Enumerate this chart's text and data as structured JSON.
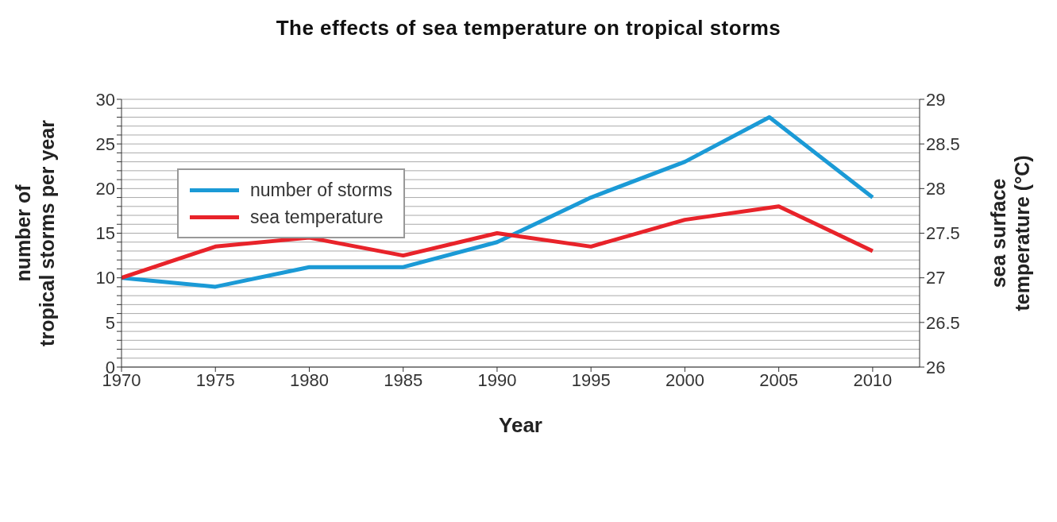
{
  "chart_data": {
    "type": "line",
    "title": "The effects of sea temperature on tropical storms",
    "xlabel": "Year",
    "ylabel": "number of\ntropical storms per year",
    "y2label": "sea surface\ntemperature (°C)",
    "x": [
      1970,
      1975,
      1980,
      1985,
      1990,
      1995,
      2000,
      2005,
      2010
    ],
    "series": [
      {
        "name": "number of storms",
        "color": "#1b9ad6",
        "x": [
          1970,
          1975,
          1980,
          1985,
          1990,
          1995,
          2000,
          2004.5,
          2010
        ],
        "values": [
          10,
          9,
          11.2,
          11.2,
          14,
          19,
          23,
          28,
          19
        ]
      },
      {
        "name": "sea temperature",
        "color": "#e8232a",
        "axis": "y2",
        "values": [
          27.0,
          27.35,
          27.45,
          27.25,
          27.5,
          27.35,
          27.65,
          27.8,
          27.3
        ]
      }
    ],
    "xlim": [
      1970,
      2012.5
    ],
    "xticks": [
      1970,
      1975,
      1980,
      1985,
      1990,
      1995,
      2000,
      2005,
      2010
    ],
    "ylim": [
      0,
      30
    ],
    "yticks": [
      0,
      {
        "value": 1,
        "label": null
      },
      {
        "value": 2,
        "label": null
      },
      {
        "value": 3,
        "label": null
      },
      {
        "value": 4,
        "label": null
      },
      5,
      {
        "value": 6,
        "label": null
      },
      {
        "value": 7,
        "label": null
      },
      {
        "value": 8,
        "label": null
      },
      {
        "value": 9,
        "label": null
      },
      10,
      {
        "value": 11,
        "label": null
      },
      {
        "value": 12,
        "label": null
      },
      {
        "value": 13,
        "label": null
      },
      {
        "value": 14,
        "label": null
      },
      15,
      {
        "value": 16,
        "label": null
      },
      {
        "value": 17,
        "label": null
      },
      {
        "value": 18,
        "label": null
      },
      {
        "value": 19,
        "label": null
      },
      20,
      {
        "value": 21,
        "label": null
      },
      {
        "value": 22,
        "label": null
      },
      {
        "value": 23,
        "label": null
      },
      {
        "value": 24,
        "label": null
      },
      25,
      {
        "value": 26,
        "label": null
      },
      {
        "value": 27,
        "label": null
      },
      {
        "value": 28,
        "label": null
      },
      {
        "value": 29,
        "label": null
      },
      30
    ],
    "y2lim": [
      26,
      29
    ],
    "y2ticks": [
      26,
      26.5,
      27,
      27.5,
      28,
      28.5,
      29
    ],
    "grid": "y",
    "legend": "top left",
    "marker": "none",
    "line_style": "solid"
  }
}
